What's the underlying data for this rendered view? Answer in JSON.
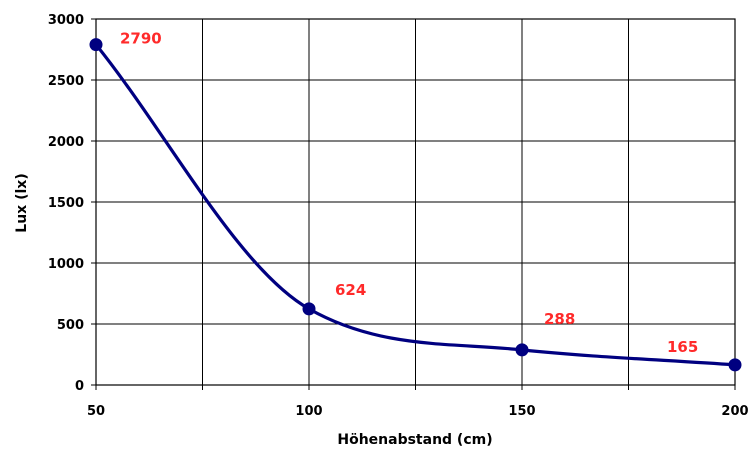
{
  "chart_data": {
    "type": "line",
    "title": "",
    "xlabel": "Höhenabstand (cm)",
    "ylabel": "Lux (lx)",
    "x": [
      50,
      100,
      150,
      200
    ],
    "series": [
      {
        "values": [
          2790,
          624,
          288,
          165
        ],
        "data_labels": [
          "2790",
          "624",
          "288",
          "165"
        ]
      }
    ],
    "xlim": [
      50,
      200
    ],
    "ylim": [
      0,
      3000
    ],
    "x_ticks": [
      50,
      100,
      150,
      200
    ],
    "x_tick_labels": [
      "50",
      "100",
      "150",
      "200"
    ],
    "x_gridlines": [
      50,
      75,
      100,
      125,
      150,
      175,
      200
    ],
    "y_ticks": [
      0,
      500,
      1000,
      1500,
      2000,
      2500,
      3000
    ],
    "y_tick_labels": [
      "0",
      "500",
      "1000",
      "1500",
      "2000",
      "2500",
      "3000"
    ],
    "grid": true,
    "smooth": true,
    "legend": "none",
    "colors": {
      "line": "#000080",
      "marker": "#000080",
      "data_label": "#ff2a2a",
      "grid": "#000000"
    }
  }
}
